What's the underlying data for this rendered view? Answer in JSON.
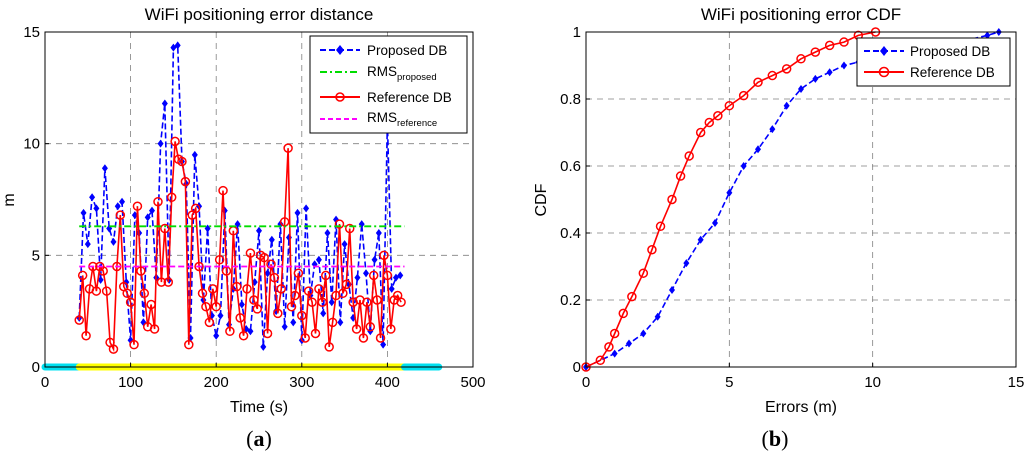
{
  "chart_data": [
    {
      "type": "line",
      "title": "WiFi positioning error distance",
      "xlabel": "Time (s)",
      "ylabel": "m",
      "xlim": [
        0,
        500
      ],
      "ylim": [
        0,
        15
      ],
      "xticks": [
        "0",
        "100",
        "200",
        "300",
        "400",
        "500"
      ],
      "yticks": [
        "0",
        "5",
        "10",
        "15"
      ],
      "grid": true,
      "legend_position": "top-right",
      "legend": [
        {
          "main": "Proposed DB",
          "sub": ""
        },
        {
          "main": "RMS",
          "sub": "proposed"
        },
        {
          "main": "Reference DB",
          "sub": ""
        },
        {
          "main": "RMS",
          "sub": "reference"
        }
      ],
      "series": [
        {
          "name": "Proposed DB",
          "color": "#0000ff",
          "style": "dashed",
          "marker": "diamond",
          "x": [
            40,
            45,
            50,
            55,
            60,
            65,
            70,
            75,
            80,
            85,
            90,
            95,
            100,
            105,
            110,
            115,
            120,
            125,
            130,
            135,
            140,
            145,
            150,
            155,
            160,
            165,
            170,
            175,
            180,
            185,
            190,
            195,
            200,
            205,
            210,
            215,
            220,
            225,
            230,
            235,
            240,
            245,
            250,
            255,
            260,
            265,
            270,
            275,
            280,
            285,
            290,
            295,
            300,
            305,
            310,
            315,
            320,
            325,
            330,
            335,
            340,
            345,
            350,
            355,
            360,
            365,
            370,
            375,
            380,
            385,
            390,
            395,
            400,
            405,
            410,
            415
          ],
          "y": [
            2.2,
            6.9,
            5.5,
            7.6,
            7.1,
            3.9,
            8.9,
            6.2,
            5.6,
            7.2,
            7.4,
            3.8,
            1.2,
            6.8,
            6.0,
            2.0,
            6.7,
            7.0,
            4.0,
            10.0,
            11.8,
            3.9,
            14.3,
            14.4,
            9.2,
            8.2,
            1.3,
            9.5,
            7.2,
            3.0,
            6.2,
            2.3,
            1.4,
            2.3,
            7.0,
            1.9,
            3.5,
            6.4,
            2.8,
            1.7,
            1.6,
            3.8,
            6.1,
            0.9,
            4.2,
            5.7,
            2.5,
            6.4,
            1.8,
            5.8,
            2.0,
            6.9,
            1.2,
            7.1,
            3.2,
            4.6,
            4.8,
            2.4,
            6.0,
            2.9,
            6.6,
            2.0,
            5.5,
            3.7,
            2.2,
            4.0,
            6.4,
            4.2,
            1.6,
            4.8,
            6.0,
            1.0,
            11.0,
            3.5,
            4.0,
            4.1
          ]
        },
        {
          "name": "Reference DB",
          "color": "#ff0000",
          "style": "solid",
          "marker": "circle",
          "x": [
            40,
            44,
            48,
            52,
            56,
            60,
            64,
            68,
            72,
            76,
            80,
            84,
            88,
            92,
            96,
            100,
            104,
            108,
            112,
            116,
            120,
            124,
            128,
            132,
            136,
            140,
            144,
            148,
            152,
            156,
            160,
            164,
            168,
            172,
            176,
            180,
            184,
            188,
            192,
            196,
            200,
            204,
            208,
            212,
            216,
            220,
            224,
            228,
            232,
            236,
            240,
            244,
            248,
            252,
            256,
            260,
            264,
            268,
            272,
            276,
            280,
            284,
            288,
            292,
            296,
            300,
            304,
            308,
            312,
            316,
            320,
            324,
            328,
            332,
            336,
            340,
            344,
            348,
            352,
            356,
            360,
            364,
            368,
            372,
            376,
            380,
            384,
            388,
            392,
            396,
            400,
            404,
            408,
            412,
            416
          ],
          "y": [
            2.1,
            4.1,
            1.4,
            3.5,
            4.5,
            3.4,
            4.5,
            4.3,
            3.4,
            1.1,
            0.8,
            4.5,
            6.8,
            3.6,
            3.3,
            2.9,
            1.0,
            7.2,
            4.3,
            3.3,
            1.8,
            2.8,
            1.7,
            7.4,
            3.8,
            6.2,
            3.8,
            7.6,
            10.1,
            9.3,
            9.2,
            8.3,
            1.0,
            6.8,
            7.1,
            4.5,
            3.3,
            2.7,
            2.0,
            3.5,
            2.7,
            4.8,
            7.9,
            4.3,
            1.6,
            6.1,
            3.6,
            2.2,
            1.4,
            3.5,
            5.1,
            3.0,
            2.6,
            5.0,
            4.9,
            1.5,
            4.6,
            4.0,
            2.4,
            3.5,
            6.5,
            9.8,
            2.7,
            3.2,
            4.2,
            2.3,
            1.3,
            3.4,
            2.9,
            1.5,
            3.5,
            2.9,
            4.1,
            0.9,
            2.0,
            3.2,
            6.4,
            3.3,
            3.7,
            6.2,
            2.9,
            1.7,
            3.0,
            1.3,
            2.9,
            1.8,
            4.1,
            3.0,
            1.3,
            5.0,
            4.1,
            1.7,
            3.0,
            3.2,
            2.9
          ]
        },
        {
          "name": "RMS_proposed",
          "color": "#00dd00",
          "style": "dashdot",
          "x": [
            40,
            420
          ],
          "y": [
            6.3,
            6.3
          ]
        },
        {
          "name": "RMS_reference",
          "color": "#ff00ff",
          "style": "dashed",
          "x": [
            40,
            420
          ],
          "y": [
            4.5,
            4.5
          ]
        }
      ],
      "time_bar": [
        {
          "from": 0,
          "to": 40,
          "color": "#00e0f0"
        },
        {
          "from": 40,
          "to": 420,
          "color": "#ffff00"
        },
        {
          "from": 420,
          "to": 460,
          "color": "#00e0f0"
        }
      ],
      "caption": {
        "open": "(",
        "letter": "a",
        "close": ")"
      }
    },
    {
      "type": "line",
      "title": "WiFi positioning error CDF",
      "xlabel": "Errors (m)",
      "ylabel": "CDF",
      "xlim": [
        0,
        15
      ],
      "ylim": [
        0,
        1
      ],
      "xticks": [
        "0",
        "5",
        "10",
        "15"
      ],
      "yticks": [
        "0",
        "0.2",
        "0.4",
        "0.6",
        "0.8",
        "1"
      ],
      "grid": true,
      "legend_position": "top-right",
      "legend": [
        {
          "main": "Proposed DB",
          "sub": ""
        },
        {
          "main": "Reference DB",
          "sub": ""
        }
      ],
      "series": [
        {
          "name": "Proposed DB",
          "color": "#0000ff",
          "style": "dashed",
          "marker": "diamond",
          "x": [
            0,
            1.0,
            1.5,
            2.0,
            2.5,
            3.0,
            3.5,
            4.0,
            4.5,
            5.0,
            5.5,
            6.0,
            6.5,
            7.0,
            7.5,
            8.0,
            8.5,
            9.0,
            9.5,
            10.0,
            11.0,
            12.0,
            13.0,
            14.0,
            14.4
          ],
          "y": [
            0,
            0.04,
            0.07,
            0.1,
            0.15,
            0.23,
            0.31,
            0.38,
            0.43,
            0.52,
            0.6,
            0.65,
            0.71,
            0.78,
            0.83,
            0.86,
            0.88,
            0.9,
            0.91,
            0.93,
            0.95,
            0.96,
            0.97,
            0.99,
            1.0
          ]
        },
        {
          "name": "Reference DB",
          "color": "#ff0000",
          "style": "solid",
          "marker": "circle",
          "x": [
            0,
            0.5,
            0.8,
            1.0,
            1.3,
            1.6,
            2.0,
            2.3,
            2.6,
            3.0,
            3.3,
            3.6,
            4.0,
            4.3,
            4.6,
            5.0,
            5.5,
            6.0,
            6.5,
            7.0,
            7.5,
            8.0,
            8.5,
            9.0,
            9.5,
            10.1
          ],
          "y": [
            0,
            0.02,
            0.06,
            0.1,
            0.16,
            0.21,
            0.28,
            0.35,
            0.42,
            0.5,
            0.57,
            0.63,
            0.7,
            0.73,
            0.75,
            0.78,
            0.81,
            0.85,
            0.87,
            0.89,
            0.92,
            0.94,
            0.96,
            0.97,
            0.99,
            1.0
          ]
        }
      ],
      "caption": {
        "open": "(",
        "letter": "b",
        "close": ")"
      }
    }
  ]
}
